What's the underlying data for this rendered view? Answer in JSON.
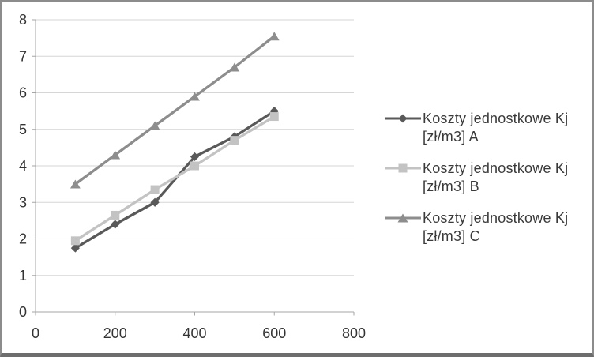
{
  "chart_data": {
    "type": "line",
    "title": "",
    "xlabel": "",
    "ylabel": "",
    "x": [
      100,
      200,
      300,
      400,
      500,
      600
    ],
    "series": [
      {
        "name": "Koszty jednostkowe Kj [zł/m3] A",
        "marker": "diamond",
        "color": "#595959",
        "values": [
          1.75,
          2.4,
          3.0,
          4.25,
          4.8,
          5.5
        ]
      },
      {
        "name": "Koszty jednostkowe Kj [zł/m3] B",
        "marker": "square",
        "color": "#c3c3c3",
        "values": [
          1.95,
          2.65,
          3.35,
          4.0,
          4.7,
          5.35
        ]
      },
      {
        "name": "Koszty jednostkowe Kj [zł/m3] C",
        "marker": "triangle",
        "color": "#8d8d8d",
        "values": [
          3.5,
          4.3,
          5.1,
          5.9,
          6.7,
          7.55
        ]
      }
    ],
    "xlim": [
      0,
      800
    ],
    "ylim": [
      0,
      8
    ],
    "xticks": [
      "0",
      "200",
      "400",
      "600",
      "800"
    ],
    "yticks": [
      "0",
      "1",
      "2",
      "3",
      "4",
      "5",
      "6",
      "7",
      "8"
    ],
    "grid": true,
    "legend_position": "right",
    "colors": {
      "background": "#ffffff",
      "gridline": "#d6d6d6",
      "axis": "#a6a6a6",
      "tick_text": "#333333",
      "legend_text": "#3a3a3a",
      "frame_border": "#8c8c8c"
    }
  },
  "legend": {
    "marker_icons": [
      "diamond-icon",
      "square-icon",
      "triangle-icon"
    ]
  }
}
